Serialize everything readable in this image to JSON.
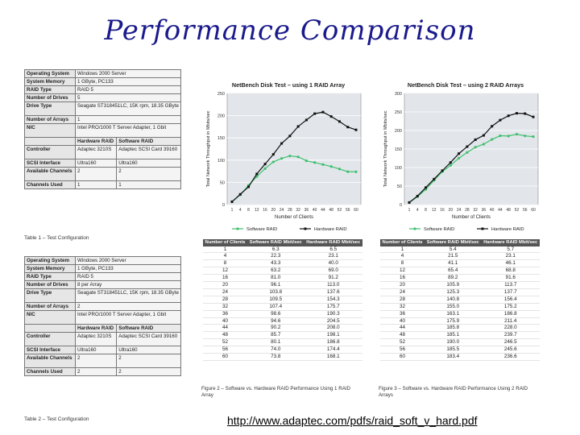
{
  "title": "Performance Comparison",
  "url": "http://www.adaptec.com/pdfs/raid_soft_v_hard.pdf",
  "config_tables": [
    {
      "caption": "Table 1 – Test Configuration",
      "rows": [
        [
          "Operating System",
          "Windows 2000 Server",
          ""
        ],
        [
          "System Memory",
          "1 GByte, PC133",
          ""
        ],
        [
          "RAID Type",
          "RAID 5",
          ""
        ],
        [
          "Number of Drives",
          "5",
          ""
        ],
        [
          "Drive Type",
          "Seagate ST318451LC, 15K rpm, 18.35 GByte",
          ""
        ],
        [
          "Number of Arrays",
          "1",
          ""
        ],
        [
          "NIC",
          "Intel PRO/1000 T Server Adapter, 1 Gbit",
          ""
        ],
        [
          "",
          "Hardware RAID",
          "Software RAID"
        ],
        [
          "Controller",
          "Adaptec 3210S",
          "Adaptec SCSI Card 39160"
        ],
        [
          "SCSI Interface",
          "Ultra160",
          "Ultra160"
        ],
        [
          "Available Channels",
          "2",
          "2"
        ],
        [
          "Channels Used",
          "1",
          "1"
        ]
      ]
    },
    {
      "caption": "Table 2 – Test Configuration",
      "rows": [
        [
          "Operating System",
          "Windows 2000 Server",
          ""
        ],
        [
          "System Memory",
          "1 GByte, PC133",
          ""
        ],
        [
          "RAID Type",
          "RAID 5",
          ""
        ],
        [
          "Number of Drives",
          "8 per Array",
          ""
        ],
        [
          "Drive Type",
          "Seagate ST318451LC, 15K rpm, 18.35 GByte",
          ""
        ],
        [
          "Number of Arrays",
          "2",
          ""
        ],
        [
          "NIC",
          "Intel PRO/1000 T Server Adapter, 1 Gbit",
          ""
        ],
        [
          "",
          "Hardware RAID",
          "Software RAID"
        ],
        [
          "Controller",
          "Adaptec 3210S",
          "Adaptec SCSI Card 39160"
        ],
        [
          "SCSI Interface",
          "Ultra160",
          "Ultra160"
        ],
        [
          "Available Channels",
          "2",
          "2"
        ],
        [
          "Channels Used",
          "2",
          "2"
        ]
      ]
    }
  ],
  "chart_data": [
    {
      "type": "line",
      "title": "NetBench Disk Test – using 1 RAID Array",
      "xlabel": "Number of Clients",
      "ylabel": "Total Network Throughput in Mbits/sec",
      "ylim": [
        0,
        250
      ],
      "yticks": [
        0,
        50,
        100,
        150,
        200,
        250
      ],
      "x": [
        1,
        4,
        8,
        12,
        16,
        20,
        24,
        28,
        32,
        36,
        40,
        44,
        48,
        52,
        56,
        60
      ],
      "series": [
        {
          "name": "Software RAID",
          "color": "#3fbf6f",
          "values": [
            6.3,
            22.3,
            43.3,
            63.2,
            81.0,
            96.1,
            103.8,
            109.5,
            107.4,
            98.6,
            94.6,
            90.2,
            85.7,
            80.1,
            74.0,
            73.8
          ]
        },
        {
          "name": "Hardware RAID",
          "color": "#111111",
          "values": [
            6.5,
            23.1,
            40.0,
            69.0,
            91.2,
            113.0,
            137.6,
            154.3,
            175.7,
            190.3,
            204.5,
            208.0,
            198.1,
            186.8,
            174.4,
            168.1
          ]
        }
      ],
      "table_headers": [
        "Number of Clients",
        "Software RAID Mbit/sec",
        "Hardware RAID Mbit/sec"
      ],
      "caption": "Figure 2 – Software vs. Hardware RAID Performance Using 1 RAID Array"
    },
    {
      "type": "line",
      "title": "NetBench Disk Test – using 2 RAID Arrays",
      "xlabel": "Number of Clients",
      "ylabel": "Total Network Throughput in Mbits/sec",
      "ylim": [
        0,
        300
      ],
      "yticks": [
        0,
        50,
        100,
        150,
        200,
        250,
        300
      ],
      "x": [
        1,
        4,
        8,
        12,
        16,
        20,
        24,
        28,
        32,
        36,
        40,
        44,
        48,
        52,
        56,
        60
      ],
      "series": [
        {
          "name": "Software RAID",
          "color": "#3fbf6f",
          "values": [
            5.4,
            21.5,
            41.1,
            65.4,
            89.2,
            105.9,
            125.3,
            140.8,
            155.0,
            163.1,
            175.9,
            185.8,
            185.1,
            190.0,
            185.5,
            183.4
          ]
        },
        {
          "name": "Hardware RAID",
          "color": "#111111",
          "values": [
            5.7,
            23.1,
            46.1,
            68.8,
            91.6,
            113.7,
            137.7,
            156.4,
            175.2,
            186.8,
            211.4,
            228.0,
            239.7,
            246.5,
            245.6,
            236.6
          ]
        }
      ],
      "table_headers": [
        "Number of Clients",
        "Software RAID Mbit/sec",
        "Hardware RAID Mbit/sec"
      ],
      "caption": "Figure 3 – Software vs. Hardware RAID Performance Using 2 RAID Arrays"
    }
  ]
}
